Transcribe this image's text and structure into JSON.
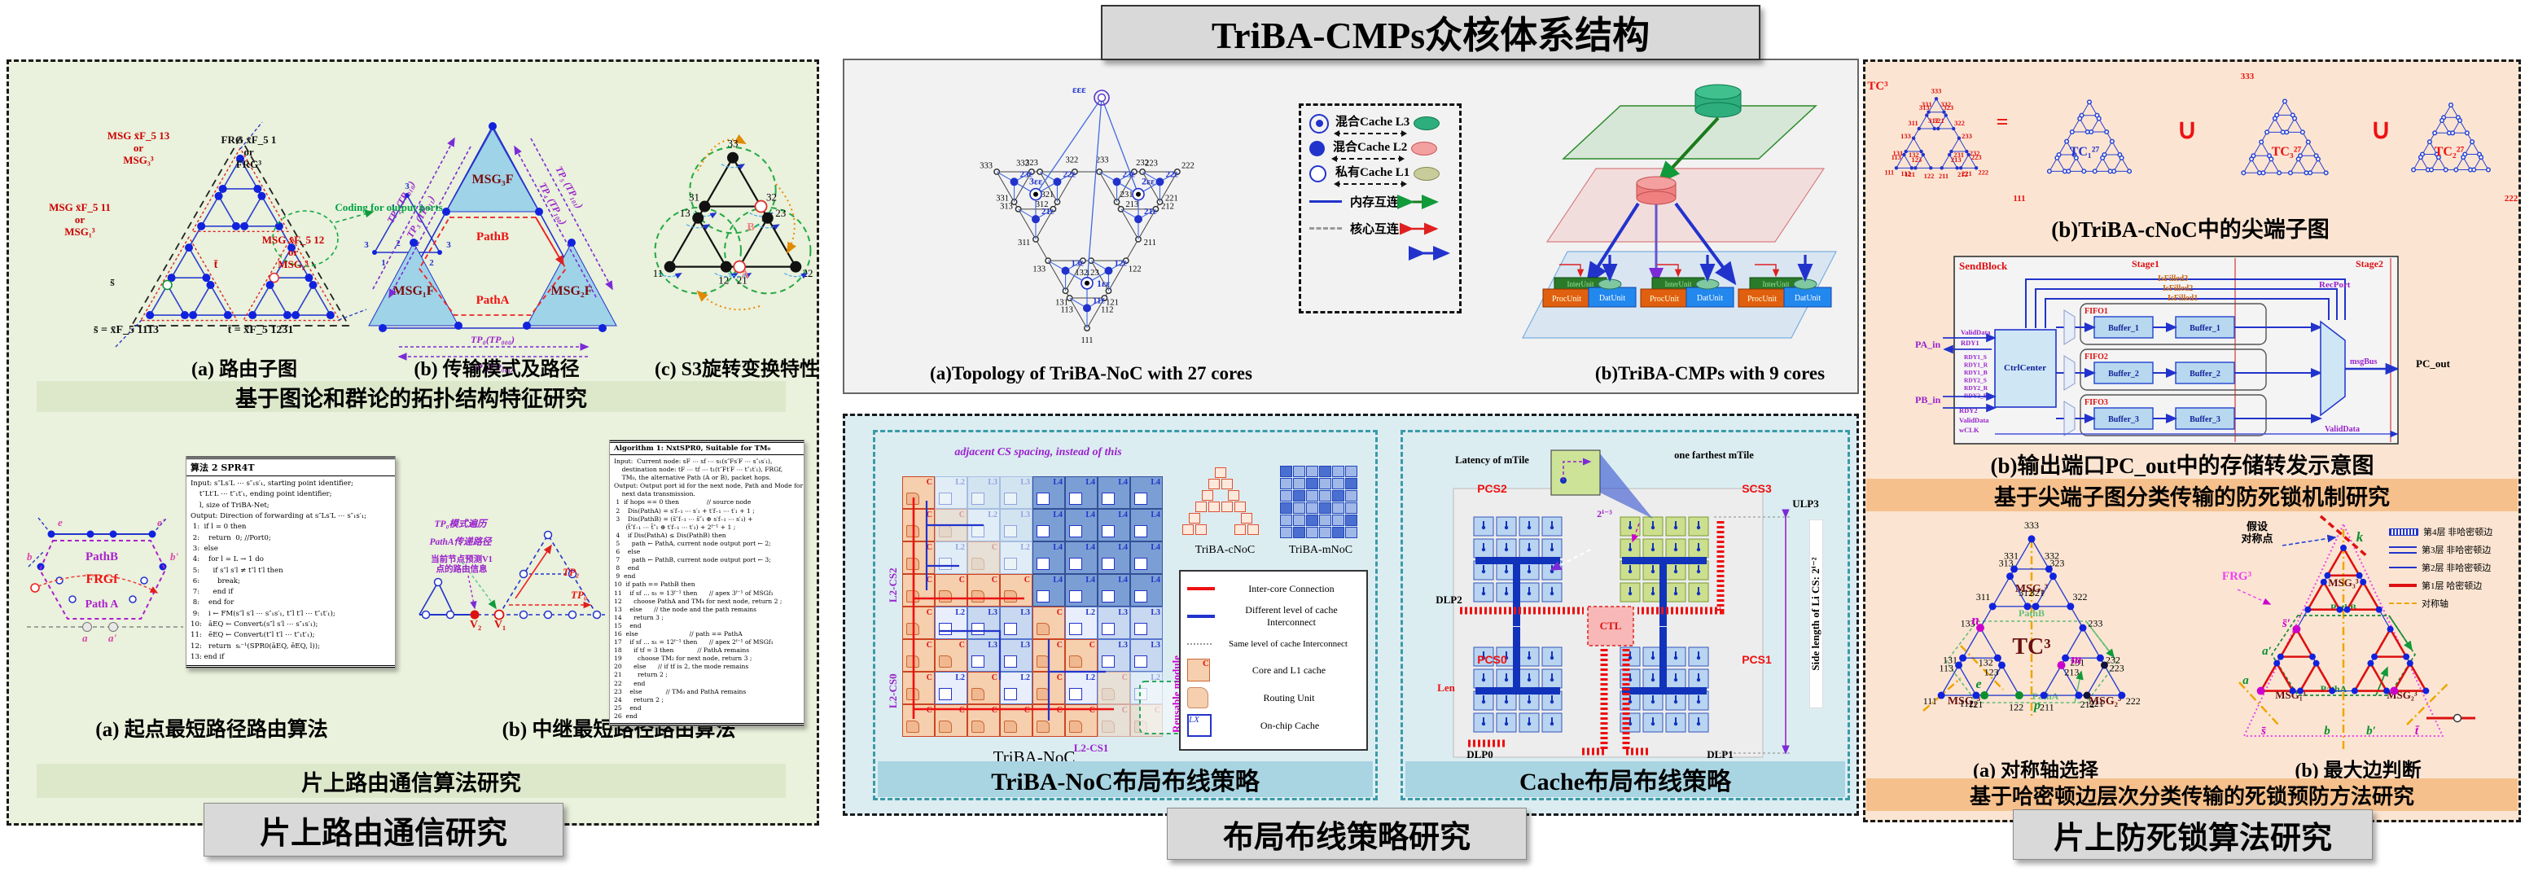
{
  "title": "TriBA-CMPs众核体系结构",
  "tc_labels": [
    "333",
    "331",
    "332",
    "313",
    "311",
    "312",
    "323",
    "321",
    "322",
    "133",
    "131",
    "132",
    "113",
    "111",
    "112",
    "123",
    "121",
    "122",
    "233",
    "231",
    "232",
    "213",
    "211",
    "212",
    "223",
    "221",
    "222"
  ],
  "left_panel": {
    "banner1": "基于图论和群论的拓扑结构特征研究",
    "banner2": "片上路由通信算法研究",
    "title_box": "片上路由通信研究",
    "fig_a": {
      "caption": "(a) 路由子图",
      "ann_msg3": "MSG x̄F_5 13\nor\nMSG₃³",
      "ann_frg": "FRG x̄F_5 1\nor\nFRG³",
      "ann_msg1": "MSG x̄F_5 11\nor\nMSG₁³",
      "ann_msg2": "MSG x̄F_5 12\nor\nMSG₂³",
      "ann_coding": "Coding for output ports",
      "s_node": "s̄",
      "t_node": "t̄",
      "s_eq": "s̄ = x̄F_5 1113",
      "t_eq": "t̄ = x̄F_5 1231",
      "coding_ports": [
        "3",
        "1",
        "2",
        "3",
        "1",
        "2",
        "3",
        "2",
        "1"
      ]
    },
    "fig_b": {
      "caption": "(b) 传输模式及路径",
      "msg3": "MSG₃F",
      "msg1": "MSG₁F",
      "msg2": "MSG₂F",
      "pathB": "PathB",
      "pathA": "PathA",
      "tp_left_out": "TP₂ (TP₀₁₀)",
      "tp_left_in": "TP₃ (TP₀₁₁)",
      "tp_right_out": "TP₅ (TP₁₀₁)",
      "tp_right_in": "TP₄ (TP₁₀₀)",
      "tp_bottom_out": "TP₀(TP₀₀₀)",
      "tp_bottom_in": "TP₁(TP₀₀₁)"
    },
    "fig_c": {
      "caption": "(c) S3旋转变换特性",
      "labels": [
        "33",
        "31",
        "32",
        "13",
        "11",
        "12",
        "23",
        "21",
        "22"
      ],
      "letter_a": "A",
      "letter_b": "B"
    },
    "fig_d": {
      "caption": "(a) 起点最短路径路由算法",
      "pathB": "PathB",
      "frg": "FRGf",
      "path_a": "Path A",
      "n_e": "e",
      "n_e2": "e'",
      "n_b": "b",
      "n_b2": "b'",
      "n_a": "a",
      "n_a2": "a'"
    },
    "algo2": {
      "title": "算法 2 SPR4T",
      "lines": [
        "Input: s″Ls′L ⋯ s″₁s′₁, starting point identifier;",
        "    t″Lt′L ⋯ t″₁t′₁, ending point identifier;",
        "    l, size of TriBA-Net;",
        "Output: Direction of forwarding at s″Ls′L ⋯ s″₁s′₁;",
        " 1:  if l = 0 then",
        " 2:    return  0; //Port0;",
        " 3:  else",
        " 4:    for l = L → 1 do",
        " 5:      if s″l s′l ≠ t″l t′l then",
        " 6:        break;",
        " 7:      end if",
        " 8:    end for",
        " 9:    i ← FM(s″l s′l ⋯ s″₁s′₁, t″l t′l ⋯ t″₁t′₁);",
        "10:   āEQ ← Convertᵢ(s″l s′l ⋯ s″₁s′₁);",
        "11:   ēEQ ← Convertᵢ(t″l t′l ⋯ t″₁t′₁);",
        "12:   return  sᵢ⁻¹(SPR0(āEQ, ēEQ, l));",
        "13: end if"
      ]
    },
    "fig_e": {
      "caption": "(b) 中继最短路径路由算法",
      "v2": "V₂",
      "v1": "V₁",
      "tp2": "TP₂",
      "tp0": "TP₀",
      "ann1": "TP₀模式遍历",
      "ann2": "PathA传递路径",
      "ann3": "当前节点预测V1\n点的路由信息"
    },
    "algo1": {
      "title": "Algorithm 1: NxtSPR0, Suitable for TM₀",
      "lines": [
        "Input:  Current node: sF ⋯ sf ⋯ s₁(s″Fs′F ⋯ s″₁s′₁),",
        "    destination node: tF ⋯ tf ⋯ t₁(t″Ft′F ⋯ t″₁t′₁), FRGf,",
        "    TM₀, the alternative Path (A or B), packet hops.",
        "Output: Output port id for the next node, Path and Mode for",
        "    next data transmission.",
        " 1  if hops == 0 then              // source node",
        " 2    Dis(PathA) = s′f₋₁ ⋯ s′₁ + t′f₋₁ ⋯ t′₁ + 1 ;",
        " 3    Dis(PathB) = (s̄″f₋₁ ⋯ s̄″₁ ⊕ s′f₋₁ ⋯ s′₁) +",
        "      (t̄″f₋₁ ⋯ t̄″₁ ⊕ t′f₋₁ ⋯ t′₁) + 2ᶠ⁻¹ + 1 ;",
        " 4    if Dis(PathA) ≤ Dis(PathB) then",
        " 5      path ← PathA, current node output port ← 2;",
        " 6    else",
        " 7      path ← PathB, current node output port ← 3;",
        " 8    end",
        " 9  end",
        "10  if path == PathB then",
        "11    if sf … s₁ = 13ᶠ⁻¹ then      // apex 3ᶠ⁻¹ of MSGf₁",
        "12      choose PathA and TM₄ for next node, return 2 ;",
        "13    else      // the node and the path remains",
        "14      return 3 ;",
        "15    end",
        "16  else                          // path == PathA",
        "17    if sf … s₁ = 12ᶠ⁻¹ then      // apex 2ᶠ⁻¹ of MSGf₁",
        "18      if tf = 3 then            // PathA remains",
        "19        choose TM₂ for next node, return 3 ;",
        "20      else      // if tf is 2, the mode remains",
        "21        return 2 ;",
        "22      end",
        "23    else            // TM₀ and PathA remains",
        "24      return 2 ;",
        "25    end",
        "26  end"
      ]
    }
  },
  "middle_top": {
    "caption_a": "(a)Topology of  TriBA-NoC  with 27 cores",
    "caption_b": "(b)TriBA-CMPs with 9 cores",
    "root": "εεε",
    "mid_labels": [
      "1εε",
      "3εε",
      "2εε"
    ],
    "cache_labels": [
      "11ε",
      "13ε",
      "12ε",
      "21ε",
      "23ε",
      "22ε",
      "21ε",
      "23ε",
      "22ε"
    ],
    "leaf_labels": [
      "111",
      "113",
      "112",
      "131",
      "133",
      "132",
      "121",
      "123",
      "122",
      "311",
      "313",
      "312",
      "331",
      "333",
      "332",
      "321",
      "323",
      "322",
      "211",
      "213",
      "212",
      "231",
      "233",
      "232",
      "221",
      "223",
      "222"
    ],
    "legend": {
      "l3": "混合Cache L3",
      "l2": "混合Cache L2",
      "l1": "私有Cache L1",
      "mem": "内存互连",
      "core": "核心互连"
    },
    "pyramid": {
      "proc": "ProcUnit",
      "dat": "DatUnit",
      "inter": "InterUnit"
    }
  },
  "middle_bottom": {
    "title_box": "布局布线策略研究",
    "noc": {
      "banner": "TriBA-NoC布局布线策略",
      "caption": "TriBA-NoC",
      "ann_top": "adjacent CS spacing,  instead of this",
      "l2cs2": "L2-CS2",
      "l2cs0": "L2-CS0",
      "l2cs1": "L2-CS1",
      "reusable": "Reusable module",
      "cnoc": "TriBA-cNoC",
      "mnoc": "TriBA-mNoC",
      "grid": [
        [
          "C",
          "L2*",
          "L3*",
          "L3*",
          "L4",
          "L4",
          "L4",
          "L4"
        ],
        [
          "C",
          "C*",
          "L2*",
          "L3*",
          "L4",
          "L4",
          "L4",
          "L4"
        ],
        [
          "C",
          "L2*",
          "C*",
          "L2*",
          "L4",
          "L4",
          "L4",
          "L4"
        ],
        [
          "C",
          "C",
          "C",
          "C",
          "L4",
          "L4",
          "L4",
          "L4"
        ],
        [
          "C",
          "L2",
          "L3",
          "L3",
          "C",
          "L2",
          "L3",
          "L3"
        ],
        [
          "C",
          "C",
          "L3",
          "L3",
          "C",
          "C",
          "L3",
          "L3"
        ],
        [
          "C",
          "L2",
          "C",
          "L2",
          "C",
          "L2",
          "C*",
          "L2*"
        ],
        [
          "C",
          "C",
          "C",
          "C",
          "C",
          "C",
          "C*",
          "C*"
        ]
      ],
      "legend": [
        {
          "label": "Inter-core Connection"
        },
        {
          "label": "Different level of cache\nInterconnect"
        },
        {
          "label": "Same level of cache Interconnect"
        },
        {
          "label": "Core and L1 cache"
        },
        {
          "label": "Routing Unit"
        },
        {
          "label": "On-chip Cache"
        }
      ],
      "core_letter": "C",
      "cache_letter": "LX"
    },
    "cache": {
      "banner": "Cache布局布线策略",
      "latency": "Latency of mTile",
      "farthest": "one farthest mTile",
      "pcs2": "PCS2",
      "scs3": "SCS3",
      "ulp3": "ULP3",
      "dlp2": "DLP2",
      "ctl": "CTL",
      "pcs0": "PCS0",
      "pcs1": "PCS1",
      "len": "Len",
      "dlp0": "DLP0",
      "dlp1": "DLP1",
      "side": "Side length of Li CS:  2ⁱ⁻²",
      "exp": "2ⁱ⁻³"
    }
  },
  "right_panel": {
    "banner1": "基于尖端子图分类传输的防死锁机制研究",
    "banner2": "基于哈密顿边层次分类传输的死锁预防方法研究",
    "title_box": "片上防死锁算法研究",
    "top": {
      "tc3": "TC³",
      "eq": "=",
      "u1": "∪",
      "u2": "∪",
      "tc1": "TC₁²⁷",
      "tc3b": "TC₃²⁷",
      "tc2": "TC₂²⁷",
      "n111": "111",
      "n222": "222",
      "n333": "333",
      "caption": "(b)TriBA-cNoC中的尖端子图"
    },
    "circuit": {
      "caption": "(b)输出端口PC_out中的存储转发示意图",
      "sendblock": "SendBlock",
      "stage1": "Stage1",
      "stage2": "Stage2",
      "isfilled": [
        "IsFilled3",
        "IsFilled2",
        "IsFilled1"
      ],
      "recport": "RecPort",
      "fifos": [
        "FIFO1",
        "FIFO2",
        "FIFO3"
      ],
      "buffers": [
        "Buffer_1",
        "Buffer_2",
        "Buffer_3"
      ],
      "ctrl": "CtrlCenter",
      "msgbus": "msgBus",
      "validdata": "ValidData",
      "pcout": "PC_out",
      "pa": "PA_in",
      "pb": "PB_in",
      "pa_sigs": [
        "ValidData",
        "RDY1"
      ],
      "mid_sigs": [
        "RDY1_S",
        "RDY1_R",
        "RDY1_B",
        "RDY2_S",
        "RDY2_R",
        "RDY2_B"
      ],
      "pb_sigs": [
        "RDY2",
        "ValidData",
        "wCLK"
      ]
    },
    "fig_a": {
      "caption": "(a) 对称轴选择",
      "tc3": "TC³",
      "msg3": "MSG₃³",
      "msg1": "MSG₁³",
      "msg2": "MSG₂³",
      "pathB": "PathB",
      "pathA": "PathA",
      "n": "n",
      "m": "m",
      "e": "e",
      "p": "p"
    },
    "fig_b": {
      "caption": "(b) 最大边判断",
      "frg": "FRG³",
      "hyp": "假设\n对称点",
      "k": "k",
      "msg3": "MSG₃³",
      "msg1": "MSG₁³",
      "msg2": "MSG₂³",
      "pathB": "PathB",
      "pathA": "PathA",
      "s1": "s̄′",
      "a1": "a′",
      "a": "a",
      "s": "s̄",
      "b": "b",
      "b1": "b′",
      "t": "t̄",
      "legend": [
        {
          "style": "hatch",
          "label": "第4层 非哈密顿边"
        },
        {
          "style": "double",
          "label": "第3层 非哈密顿边"
        },
        {
          "style": "thin",
          "label": "第2层 非哈密顿边"
        },
        {
          "style": "red",
          "label": "第1层 哈密顿边"
        },
        {
          "style": "axis",
          "label": "对称轴"
        }
      ]
    }
  }
}
